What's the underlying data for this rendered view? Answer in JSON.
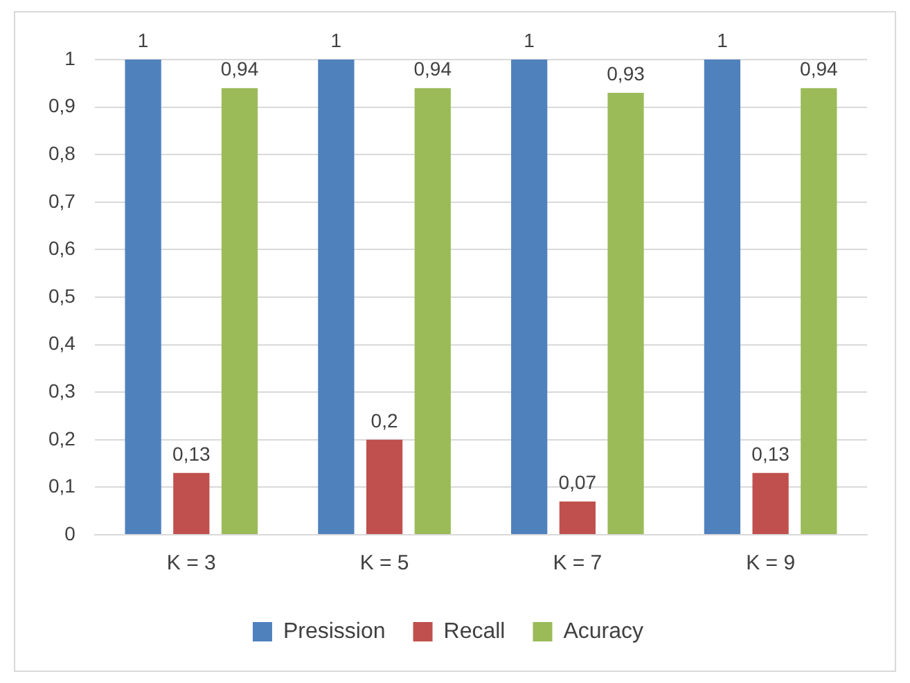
{
  "chart_data": {
    "type": "bar",
    "categories": [
      "K = 3",
      "K = 5",
      "K = 7",
      "K = 9"
    ],
    "series": [
      {
        "name": "Presission",
        "color": "#4f81bd",
        "values": [
          1,
          1,
          1,
          1
        ],
        "value_labels": [
          "1",
          "1",
          "1",
          "1"
        ]
      },
      {
        "name": "Recall",
        "color": "#c0504d",
        "values": [
          0.13,
          0.2,
          0.07,
          0.13
        ],
        "value_labels": [
          "0,13",
          "0,2",
          "0,07",
          "0,13"
        ]
      },
      {
        "name": "Acuracy",
        "color": "#9bbb59",
        "values": [
          0.94,
          0.94,
          0.93,
          0.94
        ],
        "value_labels": [
          "0,94",
          "0,94",
          "0,93",
          "0,94"
        ]
      }
    ],
    "ylim": [
      0,
      1
    ],
    "yticks": [
      {
        "value": 0,
        "label": "0"
      },
      {
        "value": 0.1,
        "label": "0,1"
      },
      {
        "value": 0.2,
        "label": "0,2"
      },
      {
        "value": 0.3,
        "label": "0,3"
      },
      {
        "value": 0.4,
        "label": "0,4"
      },
      {
        "value": 0.5,
        "label": "0,5"
      },
      {
        "value": 0.6,
        "label": "0,6"
      },
      {
        "value": 0.7,
        "label": "0,7"
      },
      {
        "value": 0.8,
        "label": "0,8"
      },
      {
        "value": 0.9,
        "label": "0,9"
      },
      {
        "value": 1,
        "label": "1"
      }
    ],
    "grid": "y",
    "legend": "bottom"
  }
}
